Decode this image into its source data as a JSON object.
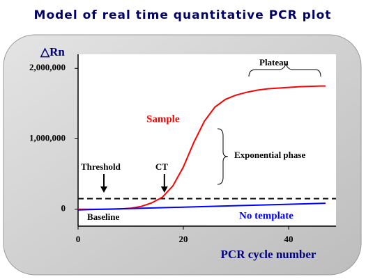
{
  "chart_data": {
    "type": "line",
    "title": "Model of real time quantitative PCR plot",
    "y_label": "△Rn",
    "x_label": "PCR cycle number",
    "xlim": [
      0,
      49
    ],
    "ylim": [
      -240000,
      2200000
    ],
    "xticks": [
      0,
      20,
      40
    ],
    "yticks": [
      0,
      {
        "value": 1000000,
        "label": "1,000,000"
      },
      {
        "value": 2000000,
        "label": "2,000,000"
      }
    ],
    "threshold": 150000,
    "ct": 16,
    "annotations": [
      {
        "text": "Threshold"
      },
      {
        "text": "CT"
      },
      {
        "text": "Plateau"
      },
      {
        "text": "Exponential phase"
      },
      {
        "text": "Baseline"
      }
    ],
    "series": [
      {
        "name": "Sample",
        "color": "#ff0000",
        "x": [
          0,
          2,
          4,
          6,
          8,
          10,
          12,
          14,
          16,
          18,
          20,
          22,
          24,
          26,
          28,
          30,
          32,
          34,
          36,
          38,
          40,
          42,
          44,
          46,
          47
        ],
        "values": [
          0,
          0,
          0,
          0,
          5000,
          15000,
          40000,
          90000,
          170000,
          330000,
          600000,
          950000,
          1250000,
          1450000,
          1560000,
          1620000,
          1660000,
          1690000,
          1710000,
          1720000,
          1730000,
          1740000,
          1745000,
          1750000,
          1750000
        ]
      },
      {
        "name": "No template",
        "color": "#0000ff",
        "x": [
          0,
          10,
          20,
          30,
          40,
          47
        ],
        "values": [
          -10000,
          10000,
          30000,
          50000,
          70000,
          85000
        ]
      }
    ]
  }
}
